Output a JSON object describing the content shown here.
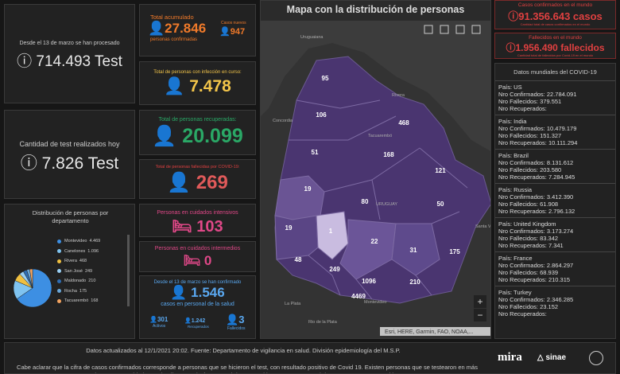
{
  "tests": {
    "since_label": "Desde el 13 de marzo se han procesado",
    "since_value": "714.493 Test",
    "today_label": "Cantidad de test realizados hoy",
    "today_value": "7.826 Test"
  },
  "distribution": {
    "title": "Distribución de personas por departamento",
    "items": [
      {
        "name": "Montevideo",
        "value": 4469,
        "label": "4.469",
        "color": "#3d8fe3"
      },
      {
        "name": "Canelones",
        "value": 1096,
        "label": "1.096",
        "color": "#7fc3f0"
      },
      {
        "name": "Rivera",
        "value": 468,
        "label": "468",
        "color": "#f0c040"
      },
      {
        "name": "San José",
        "value": 249,
        "label": "249",
        "color": "#9ad0f5"
      },
      {
        "name": "Maldonado",
        "value": 210,
        "label": "210",
        "color": "#2f6db3"
      },
      {
        "name": "Rocha",
        "value": 175,
        "label": "175",
        "color": "#6aa7d8"
      },
      {
        "name": "Tacuarembó",
        "value": 168,
        "label": "168",
        "color": "#f4a460"
      }
    ]
  },
  "stats": {
    "total": {
      "label": "Total acumulado",
      "value": "27.846",
      "sub": "personas confirmadas",
      "new_label": "Casos nuevos",
      "new_value": "947"
    },
    "active": {
      "label": "Total de personas con infección en curso:",
      "value": "7.478"
    },
    "recovered": {
      "label": "Total de personas recuperadas:",
      "value": "20.099"
    },
    "deceased": {
      "label": "Total de personas fallecidas por COVID-19:",
      "value": "269"
    },
    "icu": {
      "label": "Personas en cuidados intensivos",
      "value": "103"
    },
    "intermediate": {
      "label": "Personas en cuidados intermedios",
      "value": "0"
    },
    "health": {
      "label": "Desde el 13 de marzo se han confirmado",
      "value": "1.546",
      "sub": "casos en personal de la salud",
      "active": "301",
      "active_label": "Activos",
      "recovered": "1.242",
      "recovered_label": "Recuperados",
      "deceased": "3",
      "deceased_label": "Fallecidos"
    }
  },
  "map": {
    "title": "Mapa con la distribución de personas",
    "places": [
      "Uruguaiana",
      "Rivera",
      "Concordia",
      "Tacuarembó",
      "URUGUAY",
      "Montevideo",
      "La Plata",
      "Rio de la Plata",
      "Santa Vitória"
    ],
    "attribution": "Esri, HERE, Garmin, FAO, NOAA,...",
    "departments": [
      95,
      106,
      468,
      51,
      168,
      121,
      19,
      80,
      50,
      19,
      1,
      22,
      31,
      175,
      48,
      249,
      1096,
      210,
      4469
    ]
  },
  "world": {
    "cases_label": "Casos confirmados en el mundo",
    "cases": "91.356.643 casos",
    "cases_note": "Cantidad total de casos confirmados en el mundo",
    "deaths_label": "Fallecidos en el mundo",
    "deaths": "1.956.490 fallecidos",
    "deaths_note": "Cantidad total de fallecidos por Covid-19 en el mundo",
    "list_title": "Datos mundiales del COVID-19",
    "countries": [
      [
        "País: US",
        "Nro Confirmados: 22.784.091",
        "Nro Fallecidos: 379.551",
        "Nro Recuperados:"
      ],
      [
        "País: India",
        "Nro Confirmados: 10.479.179",
        "Nro Fallecidos: 151.327",
        "Nro Recuperados: 10.111.294"
      ],
      [
        "País: Brazil",
        "Nro Confirmados: 8.131.612",
        "Nro Fallecidos: 203.580",
        "Nro Recuperados: 7.284.945"
      ],
      [
        "País: Russia",
        "Nro Confirmados: 3.412.390",
        "Nro Fallecidos: 61.908",
        "Nro Recuperados: 2.796.132"
      ],
      [
        "País: United Kingdom",
        "Nro Confirmados: 3.173.274",
        "Nro Fallecidos: 83.342",
        "Nro Recuperados: 7.341"
      ],
      [
        "País: France",
        "Nro Confirmados: 2.864.297",
        "Nro Fallecidos: 68.939",
        "Nro Recuperados: 210.315"
      ],
      [
        "País: Turkey",
        "Nro Confirmados: 2.346.285",
        "Nro Fallecidos: 23.152",
        "Nro Recuperados:"
      ]
    ]
  },
  "footer": {
    "updated": "Datos actualizados al 12/1/2021 20:02. Fuente: Departamento de vigilancia en salud. División epidemiología del M.S.P.",
    "note": "Cabe aclarar que la cifra de casos confirmados corresponde a personas que se hicieron el test, con resultado positivo de Covid 19. Existen personas que se testearon en más de una oportunidad. Esto implica que el número total de test positivos es mayor que el de personas con test positivo.",
    "logos": [
      "mira",
      "sinae"
    ]
  }
}
